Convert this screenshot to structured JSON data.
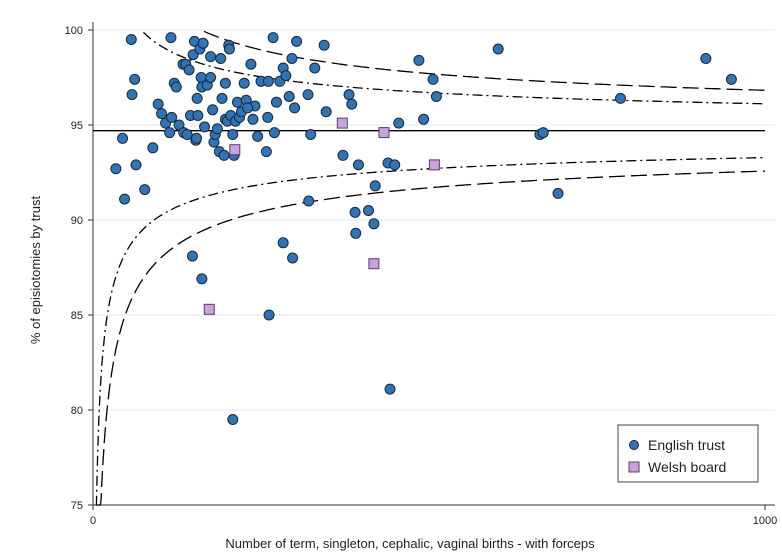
{
  "chart_data": {
    "type": "scatter",
    "xlabel": "Number of term, singleton, cephalic, vaginal births - with forceps",
    "ylabel": "% of episiotomies by trust",
    "xlim": [
      0,
      1000
    ],
    "ylim": [
      75,
      100
    ],
    "x_ticks": [
      "0",
      "1000"
    ],
    "y_ticks": [
      "75",
      "80",
      "85",
      "90",
      "95",
      "100"
    ],
    "grid": "horizontal",
    "legend_position": "bottom-right",
    "mean_line": 94.7,
    "colors": {
      "english": "#2f74b5",
      "welsh": "#c9a3dc",
      "mark_edge": "#1a2a3a",
      "lines": "#000000"
    },
    "series": [
      {
        "name": "English trust",
        "marker": "circle",
        "points": [
          [
            57,
            99.5
          ],
          [
            58,
            96.6
          ],
          [
            62,
            97.4
          ],
          [
            64,
            92.9
          ],
          [
            44,
            94.3
          ],
          [
            34,
            92.7
          ],
          [
            47,
            91.1
          ],
          [
            77,
            91.6
          ],
          [
            89,
            93.8
          ],
          [
            97,
            96.1
          ],
          [
            102,
            95.6
          ],
          [
            108,
            95.1
          ],
          [
            114,
            94.6
          ],
          [
            117,
            95.4
          ],
          [
            116,
            99.6
          ],
          [
            121,
            97.2
          ],
          [
            124,
            97.0
          ],
          [
            128,
            95.0
          ],
          [
            134,
            98.2
          ],
          [
            135,
            94.6
          ],
          [
            138,
            98.2
          ],
          [
            140,
            94.5
          ],
          [
            145,
            95.5
          ],
          [
            149,
            98.7
          ],
          [
            151,
            99.4
          ],
          [
            153,
            94.2
          ],
          [
            154,
            94.3
          ],
          [
            155,
            96.4
          ],
          [
            156,
            95.5
          ],
          [
            159,
            99.0
          ],
          [
            161,
            97.5
          ],
          [
            162,
            97.0
          ],
          [
            164,
            99.3
          ],
          [
            166,
            94.9
          ],
          [
            170,
            97.1
          ],
          [
            175,
            98.6
          ],
          [
            175,
            97.5
          ],
          [
            178,
            95.8
          ],
          [
            180,
            94.1
          ],
          [
            182,
            94.5
          ],
          [
            185,
            94.8
          ],
          [
            188,
            93.6
          ],
          [
            190,
            98.5
          ],
          [
            192,
            96.4
          ],
          [
            195,
            93.4
          ],
          [
            197,
            95.3
          ],
          [
            200,
            95.2
          ],
          [
            202,
            99.2
          ],
          [
            203,
            99.0
          ],
          [
            205,
            95.5
          ],
          [
            208,
            94.5
          ],
          [
            210,
            93.4
          ],
          [
            212,
            95.2
          ],
          [
            215,
            96.2
          ],
          [
            218,
            95.4
          ],
          [
            221,
            95.7
          ],
          [
            225,
            97.2
          ],
          [
            228,
            96.3
          ],
          [
            235,
            98.2
          ],
          [
            238,
            95.3
          ],
          [
            241,
            96.0
          ],
          [
            245,
            94.4
          ],
          [
            250,
            97.3
          ],
          [
            258,
            93.6
          ],
          [
            261,
            97.3
          ],
          [
            268,
            99.6
          ],
          [
            270,
            94.6
          ],
          [
            273,
            96.2
          ],
          [
            278,
            97.3
          ],
          [
            283,
            98.0
          ],
          [
            287,
            97.6
          ],
          [
            292,
            96.5
          ],
          [
            296,
            98.5
          ],
          [
            300,
            95.9
          ],
          [
            303,
            99.4
          ],
          [
            320,
            96.6
          ],
          [
            324,
            94.5
          ],
          [
            330,
            98.0
          ],
          [
            344,
            99.2
          ],
          [
            347,
            95.7
          ],
          [
            372,
            93.4
          ],
          [
            381,
            96.6
          ],
          [
            385,
            96.1
          ],
          [
            390,
            90.4
          ],
          [
            391,
            89.3
          ],
          [
            395,
            92.9
          ],
          [
            410,
            90.5
          ],
          [
            418,
            89.8
          ],
          [
            420,
            91.8
          ],
          [
            439,
            93.0
          ],
          [
            449,
            92.9
          ],
          [
            455,
            95.1
          ],
          [
            485,
            98.4
          ],
          [
            492,
            95.3
          ],
          [
            506,
            97.4
          ],
          [
            511,
            96.5
          ],
          [
            603,
            99.0
          ],
          [
            665,
            94.5
          ],
          [
            670,
            94.6
          ],
          [
            692,
            91.4
          ],
          [
            785,
            96.4
          ],
          [
            912,
            98.5
          ],
          [
            950,
            97.4
          ],
          [
            148,
            88.1
          ],
          [
            162,
            86.9
          ],
          [
            208,
            79.5
          ],
          [
            262,
            85.0
          ],
          [
            283,
            88.8
          ],
          [
            297,
            88.0
          ],
          [
            321,
            91.0
          ],
          [
            442,
            81.1
          ],
          [
            260,
            95.4
          ],
          [
            230,
            95.9
          ],
          [
            197,
            97.2
          ],
          [
            143,
            97.9
          ]
        ]
      },
      {
        "name": "Welsh board",
        "marker": "square",
        "points": [
          [
            173,
            85.3
          ],
          [
            211,
            93.7
          ],
          [
            371,
            95.1
          ],
          [
            418,
            87.7
          ],
          [
            433,
            94.6
          ],
          [
            508,
            92.9
          ]
        ]
      }
    ],
    "control_limits": [
      {
        "style": "long-dash",
        "sd": 3
      },
      {
        "style": "dash-dot",
        "sd": 2
      }
    ]
  }
}
